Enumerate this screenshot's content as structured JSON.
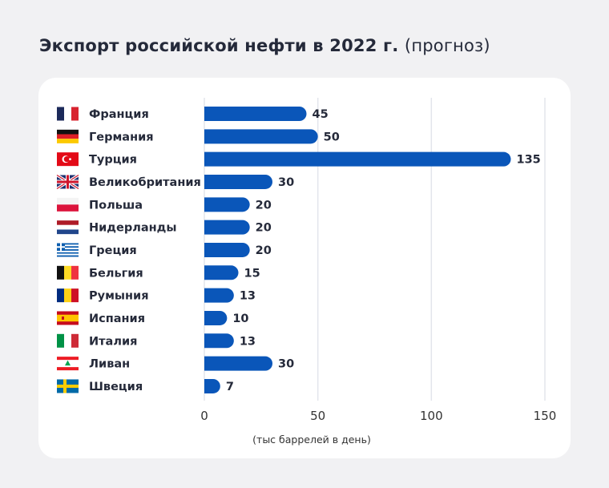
{
  "title": "Экспорт российской нефти в 2022 г.",
  "subtitle": "(прогноз)",
  "chart_data": {
    "type": "bar",
    "orientation": "horizontal",
    "categories": [
      "Франция",
      "Германия",
      "Турция",
      "Великобритания",
      "Польша",
      "Нидерланды",
      "Греция",
      "Бельгия",
      "Румыния",
      "Испания",
      "Италия",
      "Ливан",
      "Швеция"
    ],
    "flags": [
      "fr",
      "de",
      "tr",
      "gb",
      "pl",
      "nl",
      "gr",
      "be",
      "ro",
      "es",
      "it",
      "lb",
      "se"
    ],
    "values": [
      45,
      50,
      135,
      30,
      20,
      20,
      20,
      15,
      13,
      10,
      13,
      30,
      7
    ],
    "xlabel": "(тыс баррелей в день)",
    "xlim": [
      0,
      150
    ],
    "xticks": [
      0,
      50,
      100,
      150
    ],
    "grid": true,
    "bar_color": "#0a56b9"
  }
}
